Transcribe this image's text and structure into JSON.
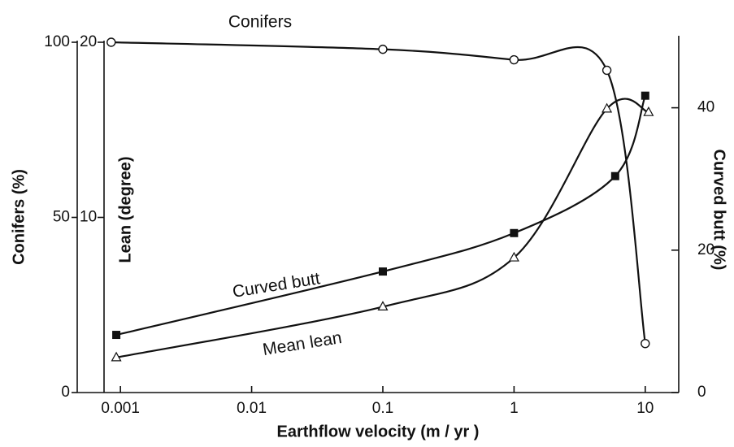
{
  "chart_data": {
    "type": "line",
    "xlabel": "Earthflow velocity (m / yr )",
    "ylabel": "Conifers (%)",
    "y2label": "Lean (degree)",
    "y3label": "Curved butt (%)",
    "annotations": [
      "Conifers",
      "Curved butt",
      "Mean lean"
    ],
    "xscale": "log",
    "xlim": [
      0.00075,
      18
    ],
    "xticks": [
      0.001,
      0.01,
      0.1,
      1,
      10
    ],
    "ylim": [
      0,
      100
    ],
    "yticks": [
      0,
      50,
      100
    ],
    "y2lim": [
      0,
      20
    ],
    "y2ticks": [
      10,
      20
    ],
    "y3lim": [
      0,
      50
    ],
    "y3ticks": [
      0,
      20,
      40
    ],
    "color": "#111111",
    "series": [
      {
        "name": "Conifers",
        "axis": "y",
        "marker": "open-circle",
        "x": [
          0.00085,
          0.1,
          1,
          5.1,
          10
        ],
        "values": [
          100,
          98,
          95,
          92,
          14
        ]
      },
      {
        "name": "Curved butt",
        "axis": "y3",
        "marker": "filled-square",
        "x": [
          0.00093,
          0.1,
          1,
          5.9,
          10
        ],
        "values": [
          8.1,
          17,
          22.4,
          30.4,
          41.7
        ]
      },
      {
        "name": "Mean lean",
        "axis": "y2",
        "marker": "open-triangle",
        "x": [
          0.00093,
          0.1,
          1,
          5.1,
          10.6
        ],
        "values": [
          2,
          4.9,
          7.7,
          16.2,
          16
        ]
      }
    ]
  }
}
